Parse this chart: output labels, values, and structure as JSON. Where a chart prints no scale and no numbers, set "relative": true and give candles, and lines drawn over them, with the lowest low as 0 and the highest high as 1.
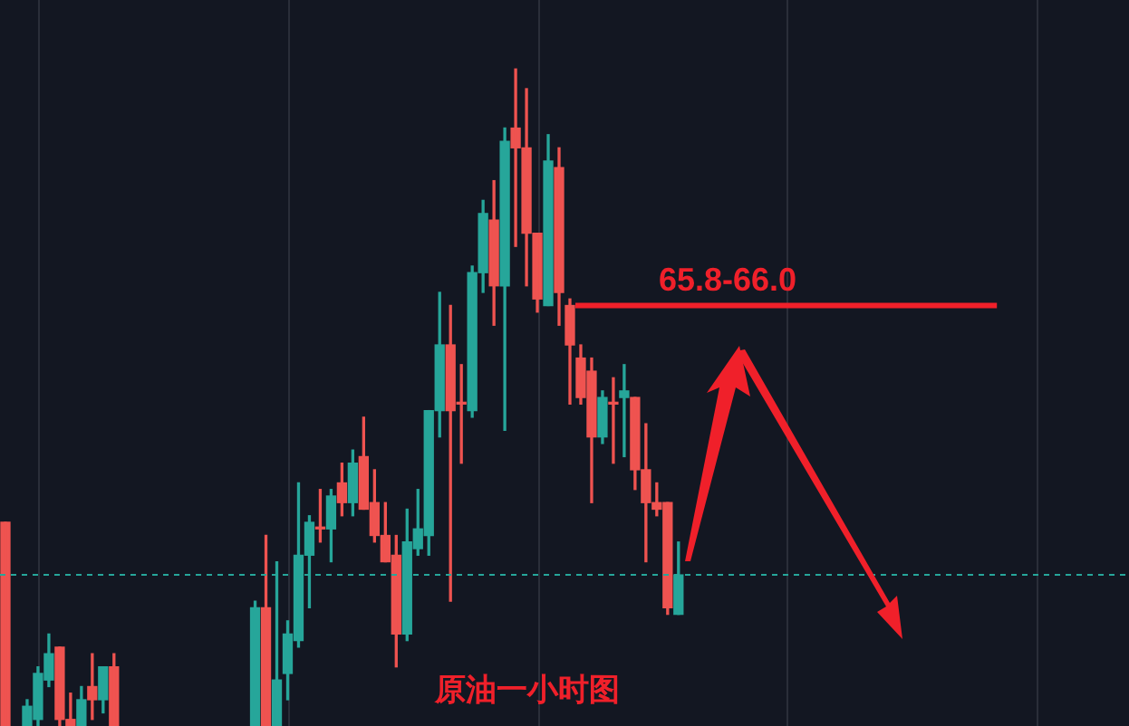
{
  "chart_data": {
    "type": "candlestick",
    "relative": true,
    "categories": [
      null,
      null,
      null,
      null,
      null,
      null,
      null,
      null,
      null,
      null,
      null,
      null,
      null,
      null,
      null,
      null,
      null,
      null,
      null,
      null,
      null,
      null,
      null,
      null,
      null,
      null,
      null,
      null,
      null,
      null,
      null,
      null,
      null,
      null,
      null,
      null,
      null,
      null,
      null,
      null,
      null,
      null,
      null,
      null,
      null,
      null,
      null,
      null,
      null,
      null,
      null,
      null,
      null,
      null,
      null,
      null,
      null,
      null,
      null,
      null,
      null,
      null,
      null
    ],
    "ohlc": [
      [
        0.31,
        0.31,
        0,
        0
      ],
      null,
      [
        0,
        0.04,
        0,
        0.03
      ],
      [
        0.01,
        0.09,
        0,
        0.08
      ],
      [
        0.07,
        0.14,
        0.06,
        0.11
      ],
      [
        0.12,
        0.12,
        0,
        0.01
      ],
      [
        0.01,
        0.05,
        0,
        0
      ],
      [
        0,
        0.06,
        0,
        0.04
      ],
      [
        0.06,
        0.11,
        0.01,
        0.04
      ],
      [
        0.04,
        0.09,
        0.02,
        0.09
      ],
      [
        0.09,
        0.11,
        0,
        0
      ],
      null,
      null,
      null,
      null,
      null,
      null,
      null,
      null,
      null,
      null,
      null,
      null,
      [
        0,
        0.19,
        0,
        0.18
      ],
      [
        0.18,
        0.29,
        0,
        0
      ],
      [
        0,
        0.25,
        0,
        0.07
      ],
      [
        0.08,
        0.16,
        0.04,
        0.14
      ],
      [
        0.13,
        0.37,
        0.12,
        0.26
      ],
      [
        0.26,
        0.32,
        0.18,
        0.31
      ],
      [
        0.3,
        0.36,
        0.28,
        0.3
      ],
      [
        0.3,
        0.36,
        0.25,
        0.35
      ],
      [
        0.37,
        0.4,
        0.32,
        0.34
      ],
      [
        0.34,
        0.42,
        0.32,
        0.4
      ],
      [
        0.41,
        0.47,
        0.33,
        0.33
      ],
      [
        0.34,
        0.39,
        0.28,
        0.29
      ],
      [
        0.29,
        0.34,
        0.25,
        0.25
      ],
      [
        0.26,
        0.29,
        0.09,
        0.14
      ],
      [
        0.14,
        0.33,
        0.13,
        0.28
      ],
      [
        0.27,
        0.36,
        0.26,
        0.3
      ],
      [
        0.29,
        0.48,
        0.26,
        0.48
      ],
      [
        0.48,
        0.66,
        0.44,
        0.58
      ],
      [
        0.58,
        0.64,
        0.19,
        0.48
      ],
      [
        0.49,
        0.55,
        0.4,
        0.49
      ],
      [
        0.48,
        0.7,
        0.47,
        0.69
      ],
      [
        0.69,
        0.8,
        0.66,
        0.78
      ],
      [
        0.77,
        0.83,
        0.61,
        0.67
      ],
      [
        0.67,
        0.91,
        0.45,
        0.89
      ],
      [
        0.91,
        1,
        0.73,
        0.88
      ],
      [
        0.88,
        0.97,
        0.67,
        0.75
      ],
      [
        0.75,
        0.75,
        0.63,
        0.65
      ],
      [
        0.64,
        0.9,
        0.64,
        0.86
      ],
      [
        0.85,
        0.88,
        0.61,
        0.66
      ],
      [
        0.64,
        0.65,
        0.49,
        0.58
      ],
      [
        0.56,
        0.58,
        0.49,
        0.5
      ],
      [
        0.54,
        0.56,
        0.34,
        0.44
      ],
      [
        0.44,
        0.51,
        0.43,
        0.5
      ],
      [
        0.49,
        0.53,
        0.4,
        0.49
      ],
      [
        0.5,
        0.55,
        0.41,
        0.51
      ],
      [
        0.5,
        0.5,
        0.36,
        0.39
      ],
      [
        0.39,
        0.46,
        0.25,
        0.34
      ],
      [
        0.34,
        0.37,
        0.32,
        0.33
      ],
      [
        0.34,
        0.34,
        0.17,
        0.18
      ],
      [
        0.17,
        0.28,
        0.17,
        0.23
      ]
    ],
    "ref_lines": [
      {
        "axis": "y",
        "value": 0.64,
        "color": "#f0202a",
        "line_style": "solid"
      },
      {
        "axis": "y",
        "value": 0.23,
        "color": "#26a69a",
        "line_style": "dashed"
      }
    ],
    "annotations": [
      "65.8-66.0",
      "原油一小时图"
    ],
    "grid": "x",
    "legend": false
  }
}
